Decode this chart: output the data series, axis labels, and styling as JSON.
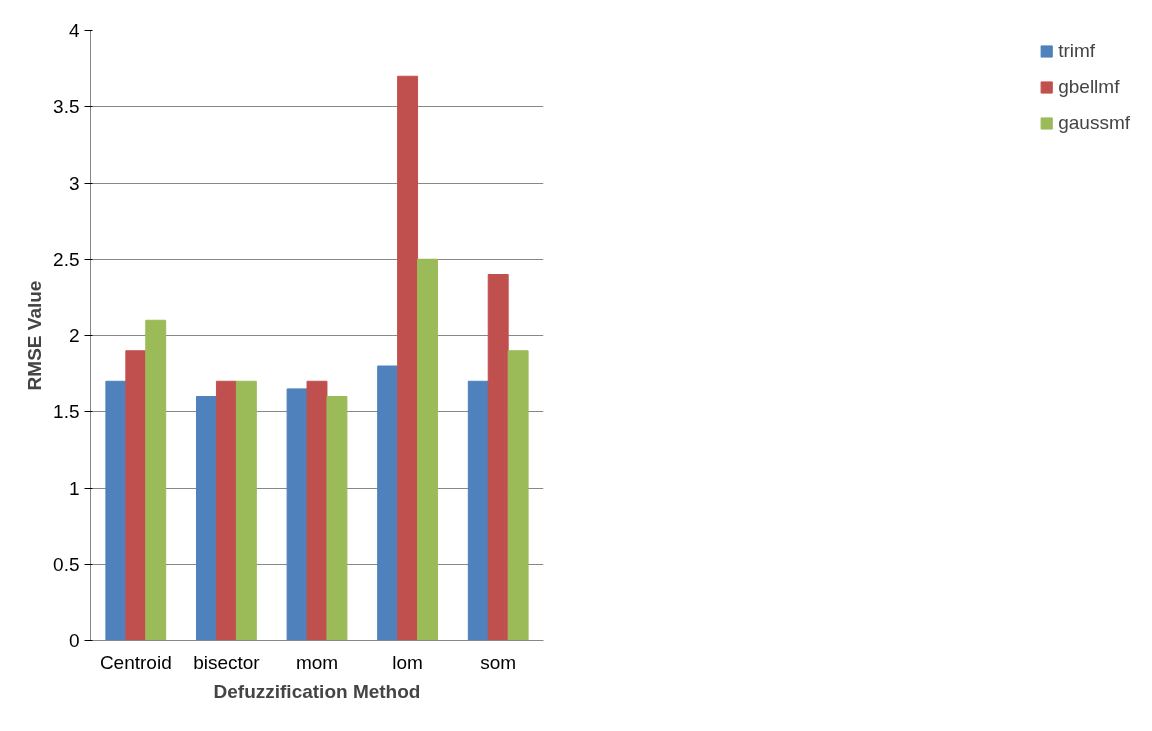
{
  "chart_data": {
    "type": "bar",
    "xlabel": "Defuzzification Method",
    "ylabel": "RMSE Value",
    "categories": [
      "Centroid",
      "bisector",
      "mom",
      "lom",
      "som"
    ],
    "series": [
      {
        "name": "trimf",
        "color": "#4f81bd",
        "values": [
          1.7,
          1.6,
          1.65,
          1.8,
          1.7
        ]
      },
      {
        "name": "gbellmf",
        "color": "#c0504d",
        "values": [
          1.9,
          1.7,
          1.7,
          3.7,
          2.4
        ]
      },
      {
        "name": "gaussmf",
        "color": "#9bbb59",
        "values": [
          2.1,
          1.7,
          1.6,
          2.5,
          1.9
        ]
      }
    ],
    "ylim": [
      0,
      4
    ],
    "yticks": [
      0,
      0.5,
      1,
      1.5,
      2,
      2.5,
      3,
      3.5,
      4
    ],
    "grid": "y",
    "legend": "right"
  }
}
